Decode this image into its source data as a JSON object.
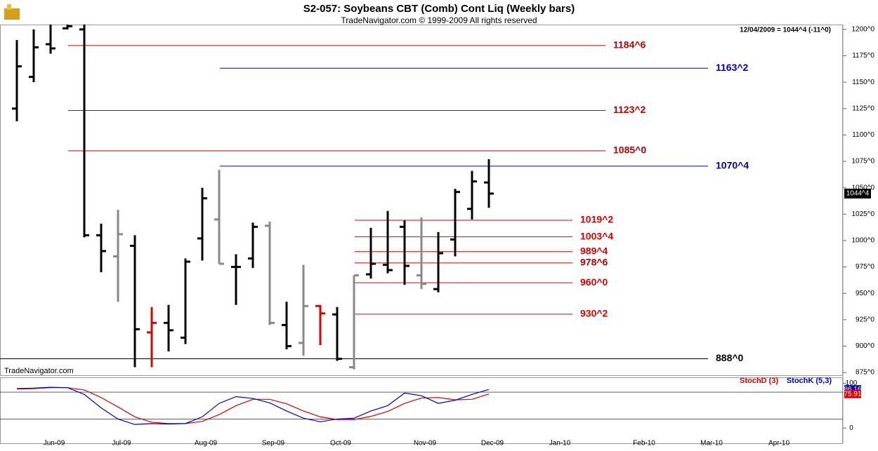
{
  "chart_data": {
    "type": "ohlc",
    "title": "S2-057:  Soybeans CBT (Comb) Cont Liq  (Weekly bars)",
    "subtitle": "TradeNavigator.com © 1999-2009 All rights reserved",
    "last_info": "12/04/2009 = 1044^4 (-11^0)",
    "watermark": "TradeNavigator.com",
    "last_price_label": "1044^4",
    "categories": [
      null,
      null,
      "Jun-09",
      null,
      null,
      null,
      "Jul-09",
      null,
      null,
      null,
      null,
      "Aug-09",
      null,
      null,
      null,
      "Sep-09",
      null,
      null,
      null,
      "Oct-09",
      null,
      null,
      null,
      null,
      "Nov-09",
      null,
      null,
      null,
      "Dec-09",
      null,
      null,
      null,
      "Jan-10",
      null,
      null,
      null,
      null,
      "Feb-10",
      null,
      null,
      null,
      "Mar-10",
      null,
      null,
      null,
      "Apr-10",
      null,
      null,
      null
    ],
    "open": [
      1125,
      1155,
      1186,
      1201,
      1200,
      1005,
      985,
      995,
      913,
      922,
      908,
      1002,
      1020,
      975,
      983,
      1014,
      920,
      903,
      938,
      930,
      880,
      968,
      977,
      1013,
      967,
      954,
      1001,
      1030,
      1055,
      null,
      null,
      null,
      null,
      null,
      null,
      null,
      null,
      null,
      null,
      null,
      null,
      null,
      null,
      null,
      null,
      null,
      null,
      null,
      null
    ],
    "high": [
      1190,
      1200,
      1205,
      1210,
      1210,
      1016,
      1029,
      1005,
      937,
      939,
      983,
      1050,
      1067,
      987,
      1017,
      1018,
      942,
      977,
      939,
      937,
      967,
      1012,
      1028,
      1019,
      1022,
      1008,
      1049,
      1066,
      1077,
      null,
      null,
      null,
      null,
      null,
      null,
      null,
      null,
      null,
      null,
      null,
      null,
      null,
      null,
      null,
      null,
      null,
      null,
      null,
      null
    ],
    "low": [
      1113,
      1150,
      1177,
      1200,
      1003,
      970,
      942,
      880,
      880,
      895,
      902,
      981,
      978,
      939,
      974,
      920,
      897,
      891,
      901,
      886,
      878,
      964,
      969,
      958,
      954,
      951,
      985,
      1020,
      1031,
      null,
      null,
      null,
      null,
      null,
      null,
      null,
      null,
      null,
      null,
      null,
      null,
      null,
      null,
      null,
      null,
      null,
      null,
      null,
      null
    ],
    "close": [
      1165,
      1183,
      1182,
      1203,
      1005,
      990,
      1006,
      916,
      922,
      915,
      980,
      1040,
      978,
      975,
      1013,
      922,
      900,
      938,
      931,
      888,
      967,
      978,
      972,
      976,
      959,
      988,
      1046,
      1056,
      1044.5,
      null,
      null,
      null,
      null,
      null,
      null,
      null,
      null,
      null,
      null,
      null,
      null,
      null,
      null,
      null,
      null,
      null,
      null,
      null,
      null
    ],
    "colors": [
      "#000",
      "#000",
      "#000",
      "#000",
      "#000",
      "#000",
      "#888",
      "#000",
      "#e00000",
      "#000",
      "#000",
      "#000",
      "#888",
      "#000",
      "#000",
      "#888",
      "#000",
      "#888",
      "#e00000",
      "#000",
      "#888",
      "#000",
      "#000",
      "#000",
      "#888",
      "#000",
      "#000",
      "#000",
      "#000",
      null,
      null,
      null,
      null,
      null,
      null,
      null,
      null,
      null,
      null,
      null,
      null,
      null,
      null,
      null,
      null,
      null,
      null,
      null,
      null
    ],
    "ylim": [
      872.4,
      1204.6
    ],
    "yticks": [
      {
        "value": 1200,
        "label": "1200^0"
      },
      {
        "value": 1175,
        "label": "1175^0"
      },
      {
        "value": 1150,
        "label": "1150^0"
      },
      {
        "value": 1125,
        "label": "1125^0"
      },
      {
        "value": 1100,
        "label": "1100^0"
      },
      {
        "value": 1075,
        "label": "1075^0"
      },
      {
        "value": 1050,
        "label": "1050^0"
      },
      {
        "value": 1025,
        "label": "1025^0"
      },
      {
        "value": 1000,
        "label": "1000^0"
      },
      {
        "value": 975,
        "label": "975^0"
      },
      {
        "value": 950,
        "label": "950^0"
      },
      {
        "value": 925,
        "label": "925^0"
      },
      {
        "value": 900,
        "label": "900^0"
      },
      {
        "value": 875,
        "label": "875^0"
      }
    ],
    "levels": [
      {
        "value": 1184.75,
        "label": "1184^6",
        "color": "#c00000"
      },
      {
        "value": 1163.25,
        "label": "1163^2",
        "color": "#0000c0"
      },
      {
        "value": 1123.25,
        "label": "1123^2",
        "color": "#c00000"
      },
      {
        "value": 1085,
        "label": "1085^0",
        "color": "#c00000"
      },
      {
        "value": 1070.5,
        "label": "1070^4",
        "color": "#0000c0"
      },
      {
        "value": 1019.25,
        "label": "1019^2",
        "color": "#e00000"
      },
      {
        "value": 1003.5,
        "label": "1003^4",
        "color": "#e00000"
      },
      {
        "value": 989.5,
        "label": "989^4",
        "color": "#e00000"
      },
      {
        "value": 978.75,
        "label": "978^6",
        "color": "#c00000"
      },
      {
        "value": 960,
        "label": "960^0",
        "color": "#e00000"
      },
      {
        "value": 930.25,
        "label": "930^2",
        "color": "#e00000"
      },
      {
        "value": 888,
        "label": "888^0",
        "color": "#000000"
      }
    ],
    "stoch": {
      "ylim": [
        -34,
        113
      ],
      "yticks": [
        0,
        100
      ],
      "levels": [
        20,
        80
      ],
      "series": [
        {
          "name": "StochD (3)",
          "color": "#e00000",
          "values": [
            87,
            88,
            90,
            90,
            85,
            68,
            47,
            25,
            13,
            10,
            10,
            15,
            30,
            50,
            64,
            64,
            54,
            38,
            25,
            19,
            19,
            26,
            37,
            55,
            67,
            68,
            63,
            64,
            75.91
          ]
        },
        {
          "name": "StochK (5,3)",
          "color": "#0000d0",
          "values": [
            88,
            89,
            91,
            90,
            75,
            45,
            20,
            8,
            10,
            9,
            10,
            25,
            55,
            70,
            66,
            56,
            38,
            22,
            14,
            20,
            22,
            38,
            50,
            78,
            72,
            55,
            62,
            75,
            86.16
          ]
        }
      ]
    }
  }
}
